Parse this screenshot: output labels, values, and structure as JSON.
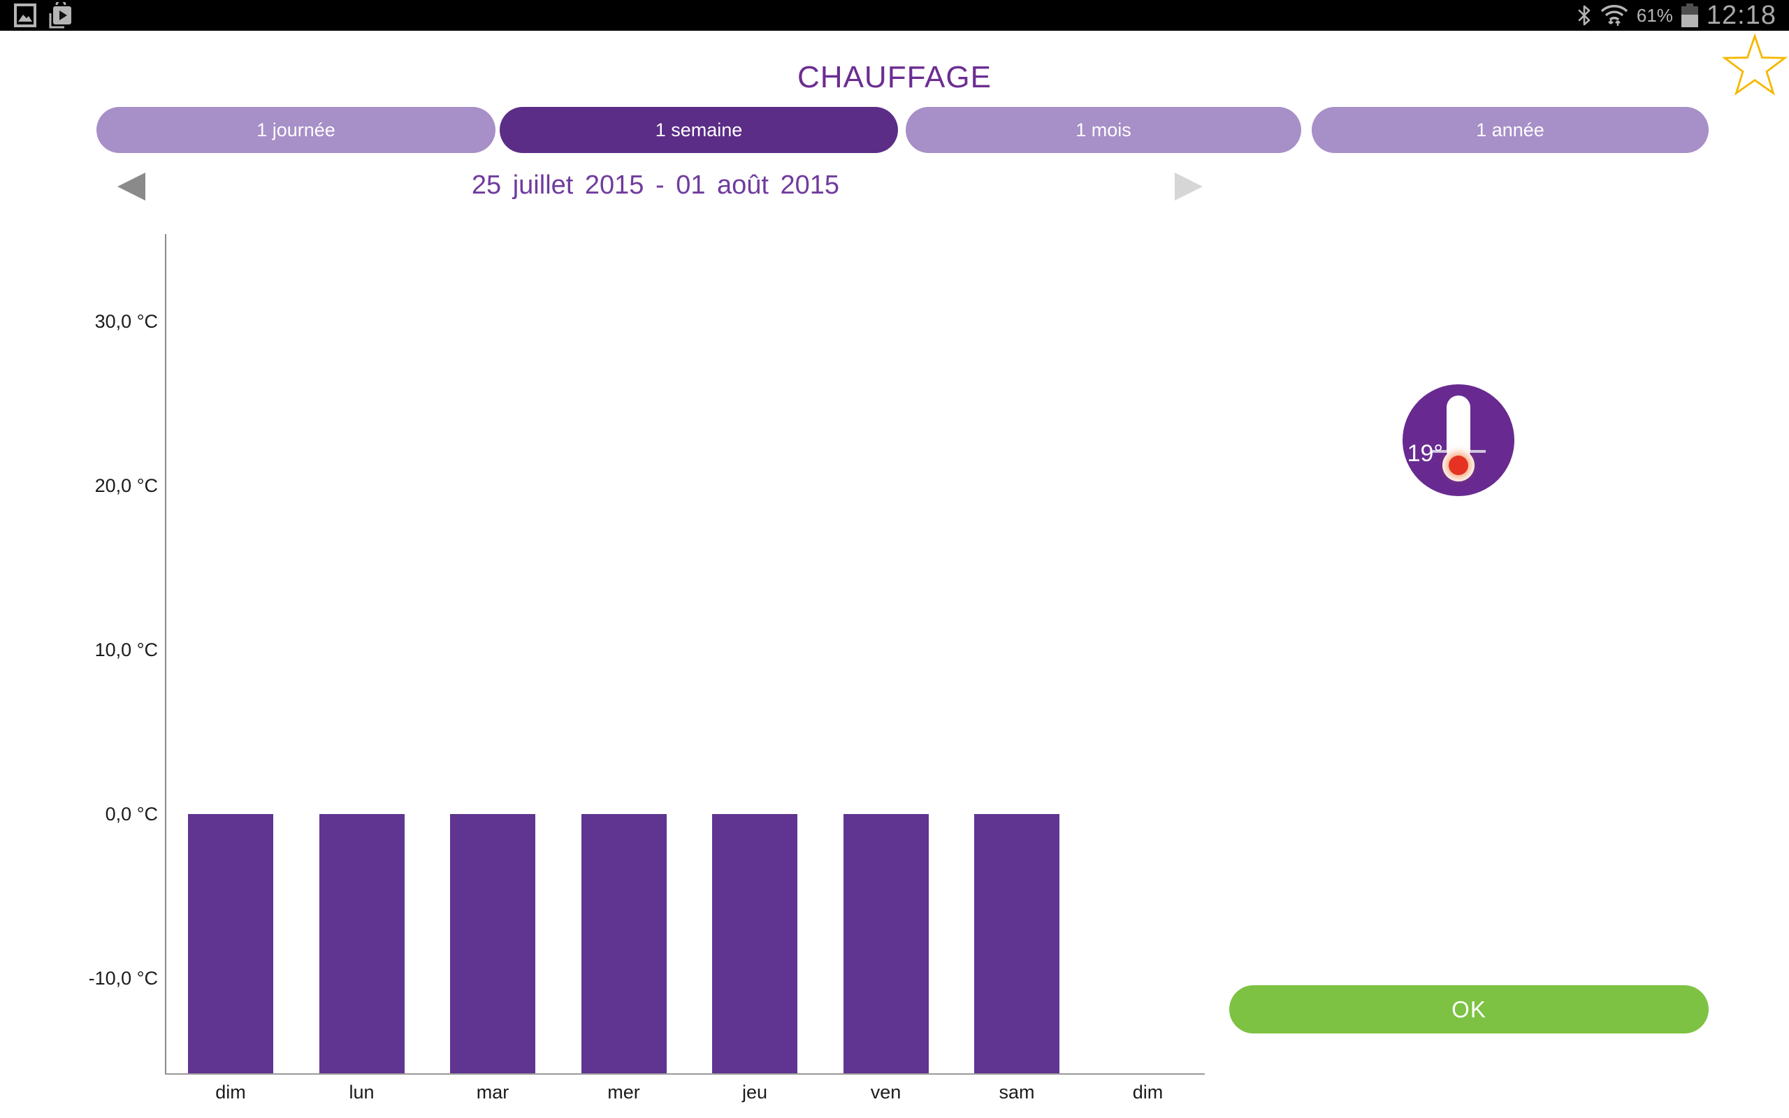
{
  "status_bar": {
    "time": "12:18",
    "battery_percent": "61%"
  },
  "header": {
    "title": "CHAUFFAGE"
  },
  "tabs": [
    {
      "label": "1 journée",
      "selected": false
    },
    {
      "label": "1 semaine",
      "selected": true
    },
    {
      "label": "1 mois",
      "selected": false
    },
    {
      "label": "1 année",
      "selected": false
    }
  ],
  "date_nav": {
    "range": "25 juillet 2015 - 01 août 2015"
  },
  "chart_data": {
    "type": "bar",
    "title": "",
    "xlabel": "",
    "ylabel": "",
    "categories": [
      "dim",
      "lun",
      "mar",
      "mer",
      "jeu",
      "ven",
      "sam",
      "dim"
    ],
    "values": [
      -15.8,
      -15.8,
      -15.8,
      -15.8,
      -15.8,
      -15.8,
      -15.8,
      null
    ],
    "y_ticks": [
      {
        "value": 30,
        "label": "30,0 °C"
      },
      {
        "value": 20,
        "label": "20,0 °C"
      },
      {
        "value": 10,
        "label": "10,0 °C"
      },
      {
        "value": 0,
        "label": "0,0 °C"
      },
      {
        "value": -10,
        "label": "-10,0 °C"
      }
    ],
    "ylim": [
      -15.8,
      35.5
    ],
    "grid": false,
    "legend": "none",
    "bar_color": "#5f3591",
    "note": "all seven bars extend from 0 °C down to the plot bottom (clipped); eighth category has no bar"
  },
  "thermostat": {
    "setpoint": "19°"
  },
  "ok_button": {
    "label": "OK"
  },
  "colors": {
    "accent_purple": "#6b2d91",
    "tab_selected": "#5b2d87",
    "tab_unselected": "#a78fc7",
    "date_text": "#6f3c9e",
    "bar_purple": "#5f3591",
    "thermo_circle": "#682a90",
    "bulb_red": "#e53222",
    "ok_green": "#7dc243",
    "star_gold": "#f5b800"
  }
}
